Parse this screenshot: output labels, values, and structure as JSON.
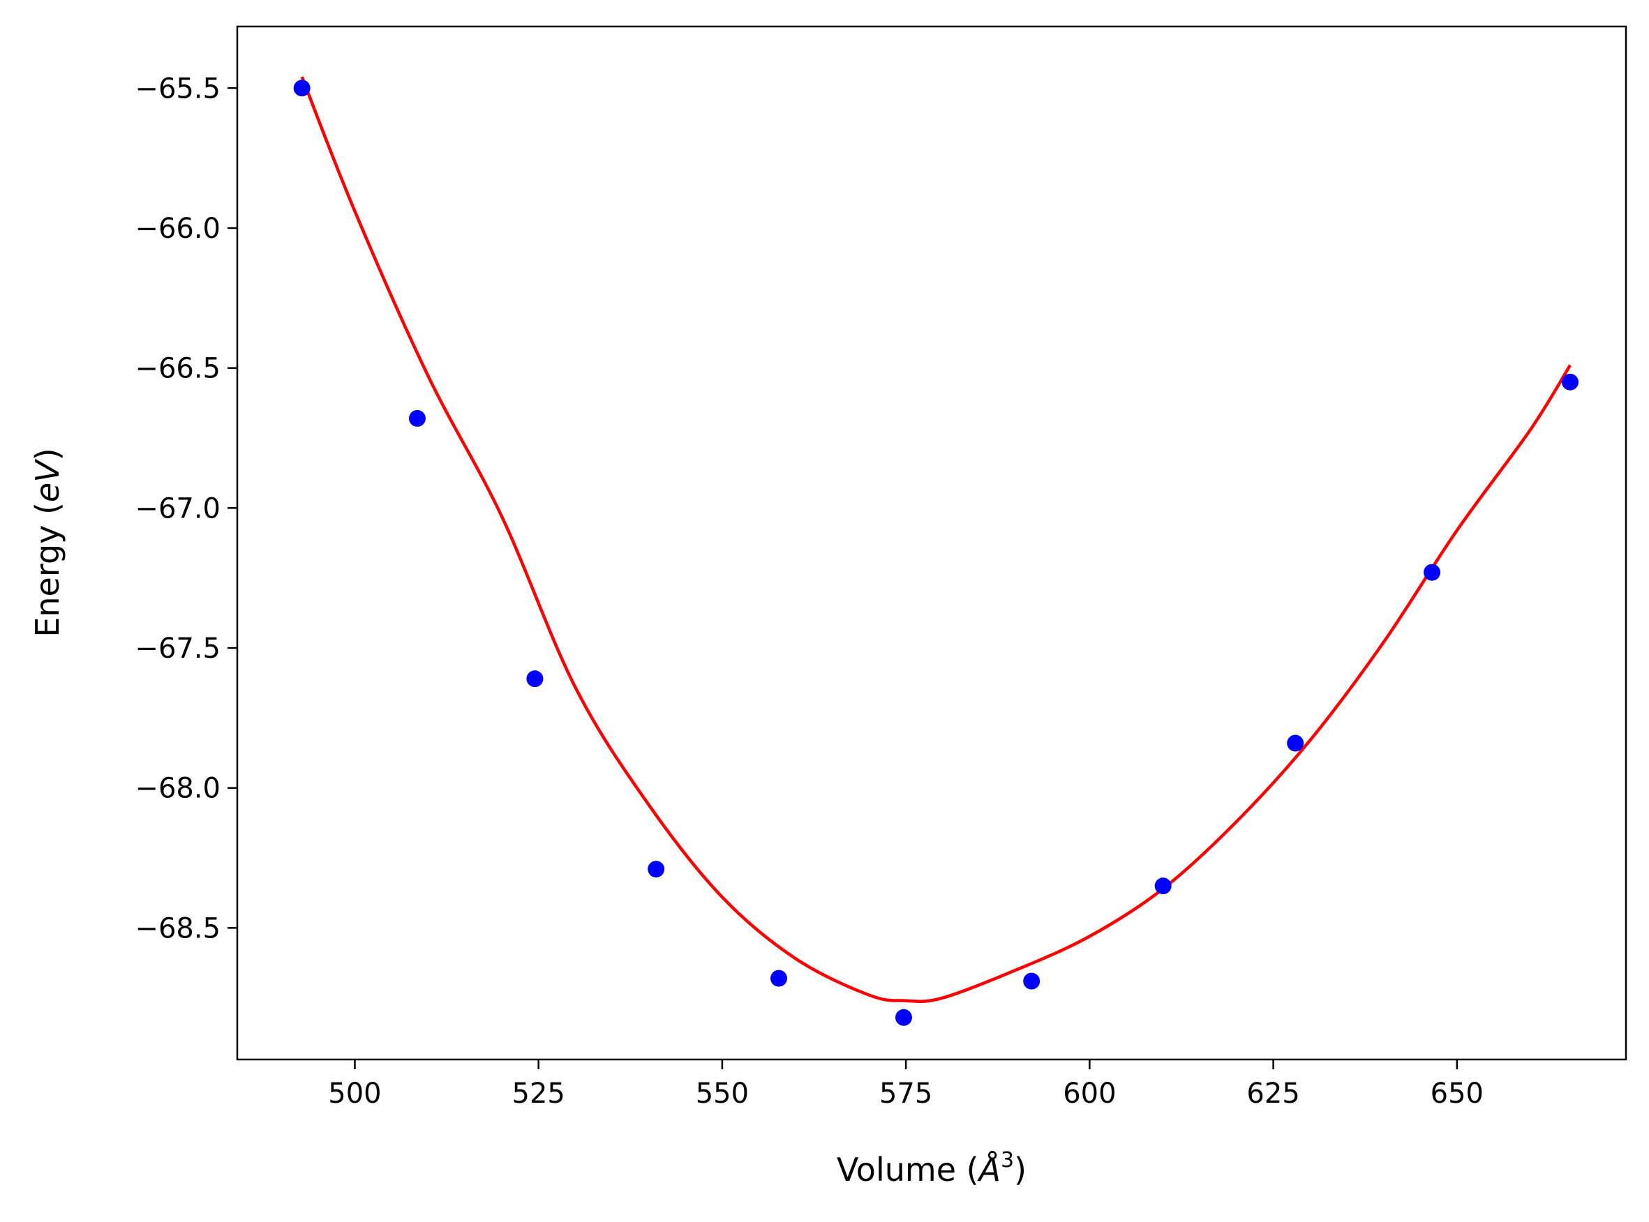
{
  "chart_data": {
    "type": "scatter",
    "xlabel_prefix": "Volume (",
    "xlabel_unit_symbol": "Å",
    "xlabel_unit_power": "3",
    "xlabel_suffix": ")",
    "ylabel_prefix": "Energy (",
    "ylabel_unit": "eV",
    "ylabel_suffix": ")",
    "xlim": [
      484.0,
      673.0
    ],
    "ylim": [
      -68.97,
      -65.28
    ],
    "x_ticks": [
      500,
      525,
      550,
      575,
      600,
      625,
      650
    ],
    "x_tick_labels": [
      "500",
      "525",
      "550",
      "575",
      "600",
      "625",
      "650"
    ],
    "y_ticks": [
      -65.5,
      -66.0,
      -66.5,
      -67.0,
      -67.5,
      -68.0,
      -68.5
    ],
    "y_tick_labels": [
      "−65.5",
      "−66.0",
      "−66.5",
      "−67.0",
      "−67.5",
      "−68.0",
      "−68.5"
    ],
    "grid": false,
    "series": [
      {
        "kind": "points",
        "color": "#0000ff",
        "x": [
          492.8,
          508.5,
          524.5,
          541.0,
          557.7,
          574.7,
          592.1,
          610.0,
          628.0,
          646.6,
          665.4
        ],
        "y": [
          -65.5,
          -66.68,
          -67.61,
          -68.29,
          -68.68,
          -68.82,
          -68.69,
          -68.35,
          -67.84,
          -67.23,
          -66.55
        ]
      },
      {
        "kind": "fit-curve",
        "color": "#ff0000",
        "x": [
          492.8,
          500,
          510,
          520,
          530,
          540,
          550,
          560,
          570,
          575,
          580,
          590,
          600,
          610,
          620,
          630,
          640,
          650,
          660,
          665.4
        ],
        "y": [
          -65.46,
          -65.94,
          -66.53,
          -67.03,
          -67.64,
          -68.06,
          -68.39,
          -68.61,
          -68.74,
          -68.76,
          -68.75,
          -68.65,
          -68.53,
          -68.36,
          -68.12,
          -67.83,
          -67.48,
          -67.08,
          -66.72,
          -66.49
        ]
      }
    ]
  }
}
